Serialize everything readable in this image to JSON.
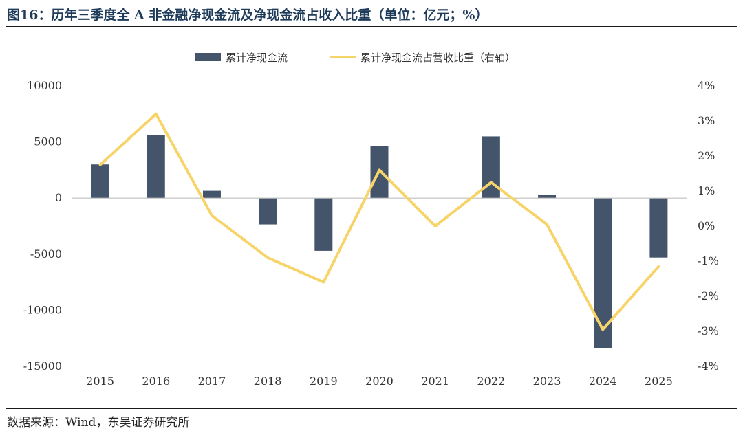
{
  "figure": {
    "title": "图16：历年三季度全 A 非金融净现金流及净现金流占收入比重（单位：亿元；%）",
    "source": "数据来源：Wind，东吴证券研究所"
  },
  "chart_data": {
    "type": "bar+line",
    "title": "历年三季度全 A 非金融净现金流及净现金流占收入比重（单位：亿元；%）",
    "categories": [
      "2015",
      "2016",
      "2017",
      "2018",
      "2019",
      "2020",
      "2021",
      "2022",
      "2023",
      "2024",
      "2025"
    ],
    "series": [
      {
        "name": "累计净现金流",
        "type": "bar",
        "axis": "left",
        "color": "#44546a",
        "values": [
          3000,
          5650,
          650,
          -2350,
          -4700,
          4650,
          0,
          5500,
          300,
          -13400,
          -5300
        ]
      },
      {
        "name": "累计净现金流占营收比重（右轴）",
        "type": "line",
        "axis": "right",
        "color": "#f7d46a",
        "values": [
          1.75,
          3.2,
          0.3,
          -0.9,
          -1.6,
          1.6,
          0.0,
          1.25,
          0.05,
          -2.95,
          -1.15
        ]
      }
    ],
    "left_axis": {
      "min": -15000,
      "max": 10000,
      "ticks": [
        10000,
        5000,
        0,
        -5000,
        -10000,
        -15000
      ],
      "tick_labels": [
        "10000",
        "5000",
        "0",
        "-5000",
        "-10000",
        "-15000"
      ]
    },
    "right_axis": {
      "min": -4,
      "max": 4,
      "ticks": [
        4,
        3,
        2,
        1,
        0,
        -1,
        -2,
        -3,
        -4
      ],
      "tick_labels": [
        "4%",
        "3%",
        "2%",
        "1%",
        "0%",
        "-1%",
        "-2%",
        "-3%",
        "-4%"
      ]
    },
    "legend": {
      "position": "top-center",
      "entries": [
        "累计净现金流",
        "累计净现金流占营收比重（右轴）"
      ]
    },
    "grid": false
  }
}
